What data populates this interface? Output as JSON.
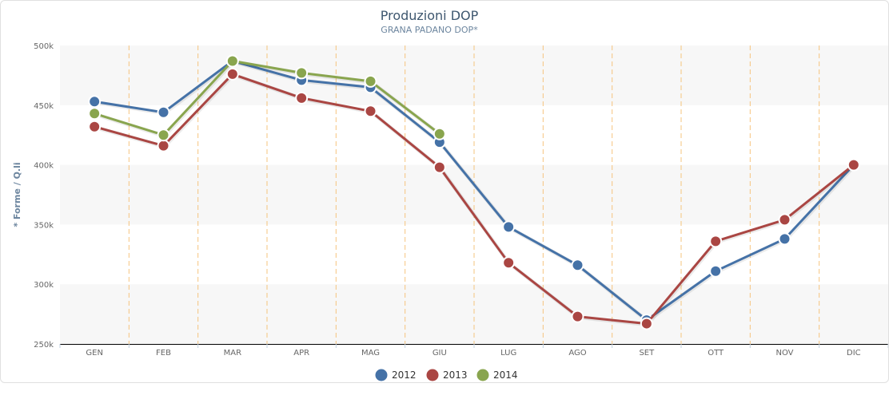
{
  "chart_data": {
    "type": "line",
    "title": "Produzioni DOP",
    "subtitle": "GRANA PADANO DOP*",
    "ylabel": "* Forme / Q.li",
    "xlabel": "",
    "categories": [
      "GEN",
      "FEB",
      "MAR",
      "APR",
      "MAG",
      "GIU",
      "LUG",
      "AGO",
      "SET",
      "OTT",
      "NOV",
      "DIC"
    ],
    "ylim": [
      250000,
      500000
    ],
    "yticks": [
      250000,
      300000,
      350000,
      400000,
      450000,
      500000
    ],
    "ytick_labels": [
      "250k",
      "300k",
      "350k",
      "400k",
      "450k",
      "500k"
    ],
    "grid": "alternating horizontal bands",
    "legend_position": "bottom-center",
    "series": [
      {
        "name": "2012",
        "color": "#4572a7",
        "values": [
          453000,
          444000,
          487000,
          471000,
          465000,
          419000,
          348000,
          316000,
          270000,
          311000,
          338000,
          400000
        ]
      },
      {
        "name": "2013",
        "color": "#aa4643",
        "values": [
          432000,
          416000,
          476000,
          456000,
          445000,
          398000,
          318000,
          273000,
          267000,
          336000,
          354000,
          400000
        ]
      },
      {
        "name": "2014",
        "color": "#89a54e",
        "values": [
          443000,
          425000,
          487000,
          477000,
          470000,
          426000,
          null,
          null,
          null,
          null,
          null,
          null
        ]
      }
    ]
  }
}
